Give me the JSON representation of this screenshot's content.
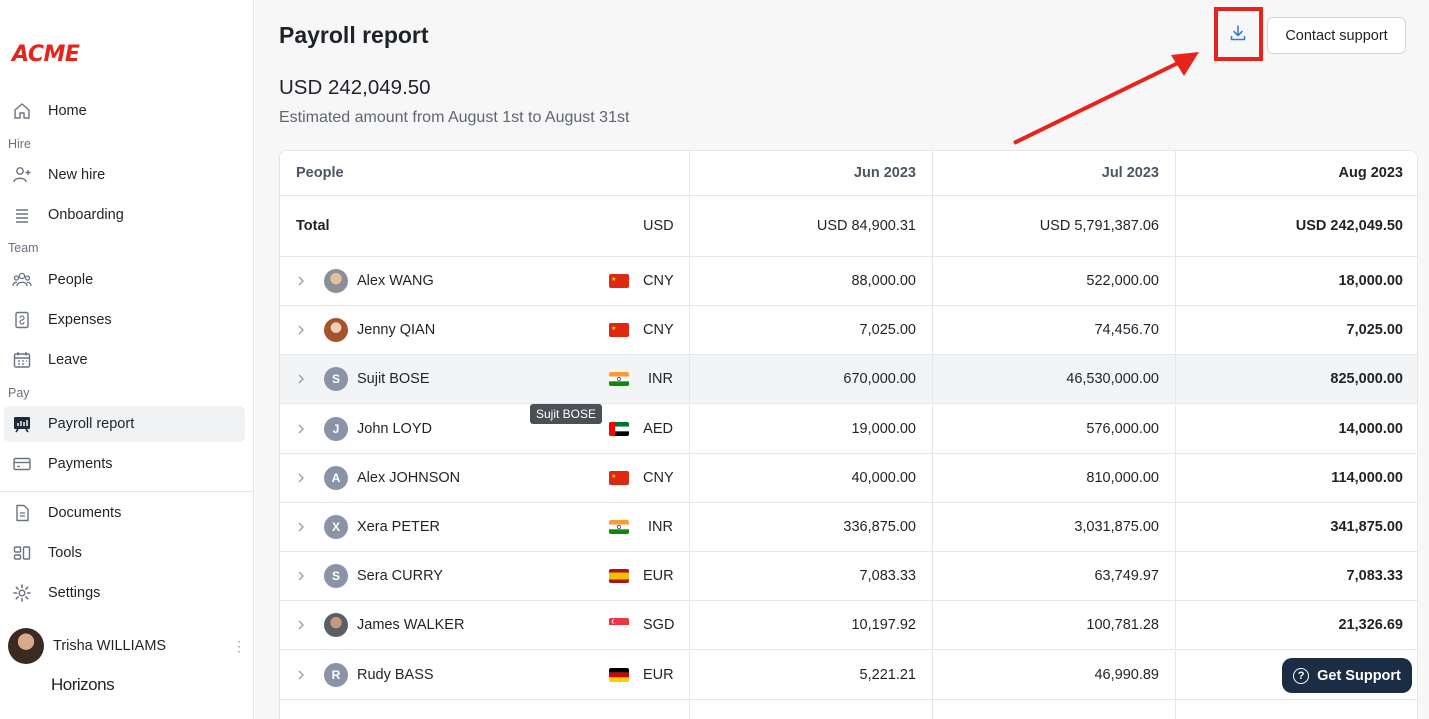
{
  "sidebar": {
    "logo": "ACME",
    "items": {
      "home": "Home",
      "new_hire": "New hire",
      "onboarding": "Onboarding",
      "people": "People",
      "expenses": "Expenses",
      "leave": "Leave",
      "payroll_report": "Payroll report",
      "payments": "Payments",
      "documents": "Documents",
      "tools": "Tools",
      "settings": "Settings"
    },
    "sections": {
      "hire": "Hire",
      "team": "Team",
      "pay": "Pay"
    },
    "user": {
      "name": "Trisha WILLIAMS"
    },
    "brand": "Horizons"
  },
  "header": {
    "title": "Payroll report",
    "contact_label": "Contact support",
    "download_icon": "download-icon"
  },
  "summary": {
    "amount": "USD 242,049.50",
    "subtitle": "Estimated amount from August 1st to August 31st"
  },
  "table": {
    "columns": [
      "People",
      "Jun 2023",
      "Jul 2023",
      "Aug 2023"
    ],
    "total": {
      "label": "Total",
      "currency": "USD",
      "jun": "USD 84,900.31",
      "jul": "USD 5,791,387.06",
      "aug": "USD 242,049.50"
    },
    "rows": [
      {
        "name": "Alex WANG",
        "initial": "",
        "currency": "CNY",
        "flag": "cn",
        "jun": "88,000.00",
        "jul": "522,000.00",
        "aug": "18,000.00"
      },
      {
        "name": "Jenny QIAN",
        "initial": "",
        "currency": "CNY",
        "flag": "cn",
        "jun": "7,025.00",
        "jul": "74,456.70",
        "aug": "7,025.00"
      },
      {
        "name": "Sujit BOSE",
        "initial": "S",
        "currency": "INR",
        "flag": "in",
        "jun": "670,000.00",
        "jul": "46,530,000.00",
        "aug": "825,000.00"
      },
      {
        "name": "John LOYD",
        "initial": "J",
        "currency": "AED",
        "flag": "ae",
        "jun": "19,000.00",
        "jul": "576,000.00",
        "aug": "14,000.00"
      },
      {
        "name": "Alex JOHNSON",
        "initial": "A",
        "currency": "CNY",
        "flag": "cn",
        "jun": "40,000.00",
        "jul": "810,000.00",
        "aug": "114,000.00"
      },
      {
        "name": "Xera PETER",
        "initial": "X",
        "currency": "INR",
        "flag": "in",
        "jun": "336,875.00",
        "jul": "3,031,875.00",
        "aug": "341,875.00"
      },
      {
        "name": "Sera CURRY",
        "initial": "S",
        "currency": "EUR",
        "flag": "es",
        "jun": "7,083.33",
        "jul": "63,749.97",
        "aug": "7,083.33"
      },
      {
        "name": "James WALKER",
        "initial": "",
        "currency": "SGD",
        "flag": "sg",
        "jun": "10,197.92",
        "jul": "100,781.28",
        "aug": "21,326.69"
      },
      {
        "name": "Rudy BASS",
        "initial": "R",
        "currency": "EUR",
        "flag": "de",
        "jun": "5,221.21",
        "jul": "46,990.89",
        "aug": ""
      }
    ]
  },
  "tooltip": "Sujit BOSE",
  "support_button": "Get Support",
  "colors": {
    "accent": "#2f7de1",
    "logo": "#e8231b",
    "annotation": "#e8231b",
    "support_bg": "#1b2c45"
  }
}
